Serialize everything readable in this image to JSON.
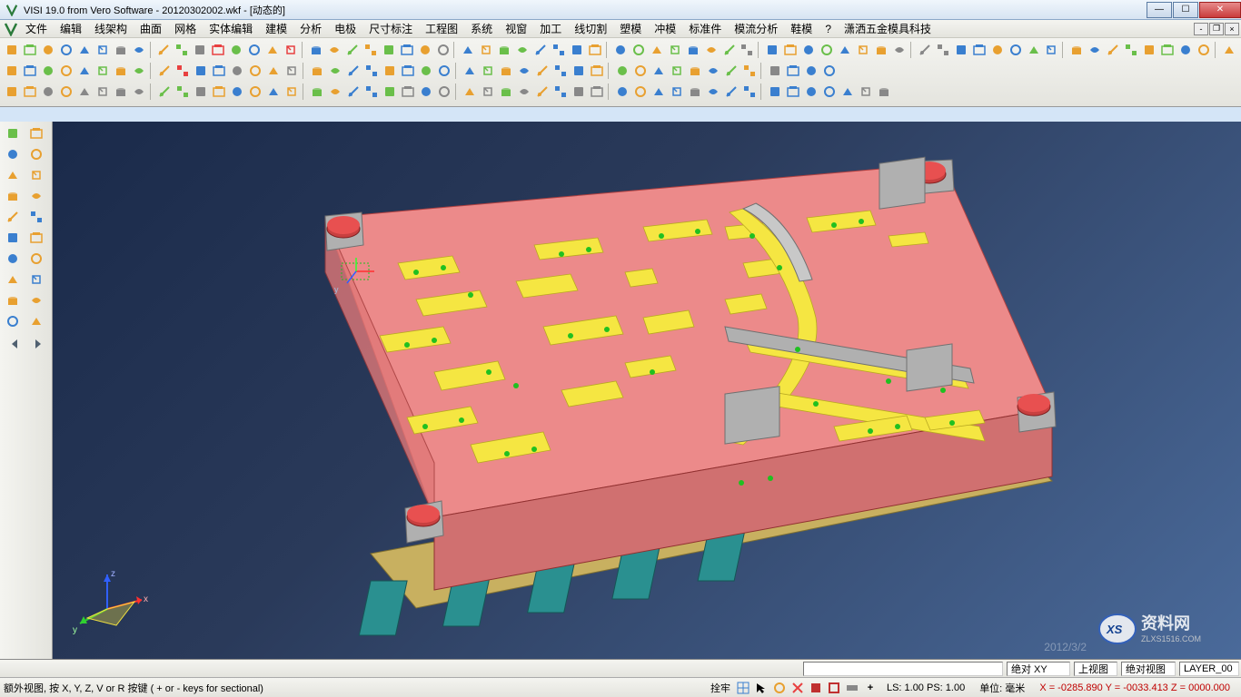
{
  "titlebar": {
    "title": "VISI 19.0  from Vero Software - 20120302002.wkf - [动态的]"
  },
  "menubar": {
    "items": [
      "文件",
      "编辑",
      "线架构",
      "曲面",
      "网格",
      "实体编辑",
      "建模",
      "分析",
      "电极",
      "尺寸标注",
      "工程图",
      "系统",
      "视窗",
      "加工",
      "线切割",
      "塑模",
      "冲模",
      "标准件",
      "模流分析",
      "鞋模",
      "?",
      "潇洒五金模具科技"
    ]
  },
  "toolbar_icons": {
    "row1_colors": [
      "#e8a030",
      "#6abf4a",
      "#e8a030",
      "#3a7fcf",
      "#3a7fcf",
      "#3a7fcf",
      "#888",
      "#3a7fcf",
      "#e8a030",
      "#6abf4a",
      "#888",
      "#e84040",
      "#6abf4a",
      "#3a7fcf",
      "#e8a030",
      "#e84040",
      "#3a7fcf",
      "#e8a030",
      "#6abf4a",
      "#e8a030",
      "#6abf4a",
      "#3a7fcf",
      "#e8a030",
      "#888",
      "#3a7fcf",
      "#e8a030",
      "#6abf4a",
      "#6abf4a",
      "#3a7fcf",
      "#3a7fcf",
      "#3a7fcf",
      "#e8a030",
      "#3a7fcf",
      "#6abf4a",
      "#e8a030",
      "#6abf4a",
      "#3a7fcf",
      "#e8a030",
      "#6abf4a",
      "#888",
      "#3a7fcf",
      "#e8a030",
      "#3a7fcf",
      "#6abf4a",
      "#3a7fcf",
      "#e8a030",
      "#e8a030",
      "#888",
      "#888",
      "#888",
      "#3a7fcf",
      "#3a7fcf",
      "#e8a030",
      "#3a7fcf",
      "#6abf4a",
      "#3a7fcf",
      "#e8a030",
      "#3a7fcf",
      "#e8a030",
      "#6abf4a",
      "#e8a030",
      "#6abf4a",
      "#3a7fcf",
      "#e8a030",
      "#e8a030"
    ],
    "row2_colors": [
      "#e8a030",
      "#3a7fcf",
      "#6abf4a",
      "#e8a030",
      "#3a7fcf",
      "#6abf4a",
      "#e8a030",
      "#6abf4a",
      "#e8a030",
      "#e84040",
      "#3a7fcf",
      "#3a7fcf",
      "#888",
      "#e8a030",
      "#e8a030",
      "#888",
      "#e8a030",
      "#6abf4a",
      "#3a7fcf",
      "#3a7fcf",
      "#e8a030",
      "#3a7fcf",
      "#6abf4a",
      "#3a7fcf",
      "#3a7fcf",
      "#6abf4a",
      "#e8a030",
      "#3a7fcf",
      "#e8a030",
      "#3a7fcf",
      "#3a7fcf",
      "#e8a030",
      "#6abf4a",
      "#e8a030",
      "#3a7fcf",
      "#6abf4a",
      "#e8a030",
      "#3a7fcf",
      "#6abf4a",
      "#e8a030",
      "#888",
      "#3a7fcf",
      "#3a7fcf",
      "#3a7fcf"
    ],
    "row3_colors": [
      "#e8a030",
      "#e8a030",
      "#888",
      "#e8a030",
      "#888",
      "#888",
      "#888",
      "#888",
      "#6abf4a",
      "#6abf4a",
      "#888",
      "#e8a030",
      "#3a7fcf",
      "#e8a030",
      "#3a7fcf",
      "#e8a030",
      "#6abf4a",
      "#e8a030",
      "#3a7fcf",
      "#3a7fcf",
      "#6abf4a",
      "#888",
      "#3a7fcf",
      "#888",
      "#e8a030",
      "#888",
      "#6abf4a",
      "#888",
      "#e8a030",
      "#3a7fcf",
      "#888",
      "#888",
      "#3a7fcf",
      "#e8a030",
      "#3a7fcf",
      "#3a7fcf",
      "#888",
      "#3a7fcf",
      "#3a7fcf",
      "#3a7fcf",
      "#3a7fcf",
      "#3a7fcf",
      "#3a7fcf",
      "#3a7fcf",
      "#3a7fcf",
      "#888",
      "#888"
    ],
    "left_pairs": [
      [
        "#6abf4a",
        "#e8a030"
      ],
      [
        "#3a7fcf",
        "#e8a030"
      ],
      [
        "#e8a030",
        "#e8a030"
      ],
      [
        "#e8a030",
        "#e8a030"
      ],
      [
        "#e8a030",
        "#3a7fcf"
      ],
      [
        "#3a7fcf",
        "#e8a030"
      ],
      [
        "#3a7fcf",
        "#e8a030"
      ],
      [
        "#e8a030",
        "#3a7fcf"
      ],
      [
        "#e8a030",
        "#e8a030"
      ]
    ],
    "left_singles": [
      "#3a7fcf",
      "#e8a030"
    ]
  },
  "statusbar": {
    "input_value": "",
    "abs_xy": "绝对 XY",
    "top_view": "上视图",
    "abs_view": "绝对视图",
    "layer": "LAYER_00",
    "hint": "额外视图, 按 X, Y, Z, V or R 按键 ( + or - keys for sectional)",
    "lock_label": "拴牢",
    "ls_ps": "LS: 1.00 PS: 1.00",
    "unit": "单位: 毫米",
    "coords": "X = -0285.890 Y = -0033.413 Z = 0000.000"
  },
  "viewport": {
    "bg_gradient_from": "#1a2a4a",
    "bg_gradient_to": "#4a6a9a",
    "plate_color": "#ec8a8a",
    "yellow_part": "#f5e642",
    "gray_part": "#b0b0b0",
    "teal_part": "#2a9090",
    "base_color": "#c8b060",
    "date_overlay": "2012/3/2"
  },
  "watermark": {
    "line1": "资料网",
    "line2": "ZLXS1516.COM"
  }
}
